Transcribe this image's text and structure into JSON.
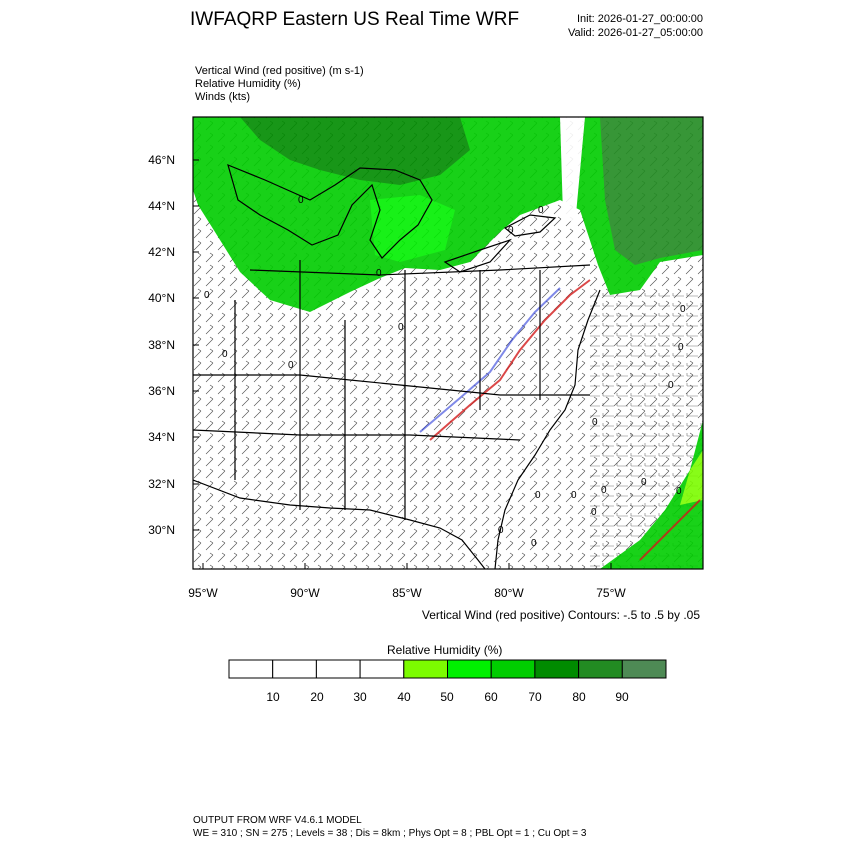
{
  "header": {
    "title": "IWFAQRP Eastern US Real Time WRF",
    "init": "Init: 2026-01-27_00:00:00",
    "valid": "Valid: 2026-01-27_05:00:00"
  },
  "variables": {
    "vertical_wind": "Vertical Wind (red positive)   (m s-1)",
    "relative_humidity": "Relative Humidity   (%)",
    "winds": "Winds   (kts)"
  },
  "map": {
    "lat_labels": [
      "46°N",
      "44°N",
      "42°N",
      "40°N",
      "38°N",
      "36°N",
      "34°N",
      "32°N",
      "30°N"
    ],
    "lon_labels": [
      "95°W",
      "90°W",
      "85°W",
      "80°W",
      "75°W"
    ],
    "contour_label": "0",
    "contour_note": "Vertical Wind (red positive) Contours: -.5 to .5 by .05"
  },
  "colorbar": {
    "title": "Relative Humidity  (%)",
    "ticks": [
      "10",
      "20",
      "30",
      "40",
      "50",
      "60",
      "70",
      "80",
      "90"
    ],
    "colors": [
      "#ffffff",
      "#ffffff",
      "#ffffff",
      "#ffffff",
      "#7cfc00",
      "#00f000",
      "#00cd00",
      "#008b00",
      "#228b22",
      "#4e8a55"
    ]
  },
  "footer": {
    "line1": "OUTPUT FROM WRF V4.6.1 MODEL",
    "line2": "WE = 310 ; SN = 275 ; Levels = 38 ; Dis = 8km ; Phys Opt = 8 ; PBL Opt = 1 ; Cu Opt = 3"
  }
}
